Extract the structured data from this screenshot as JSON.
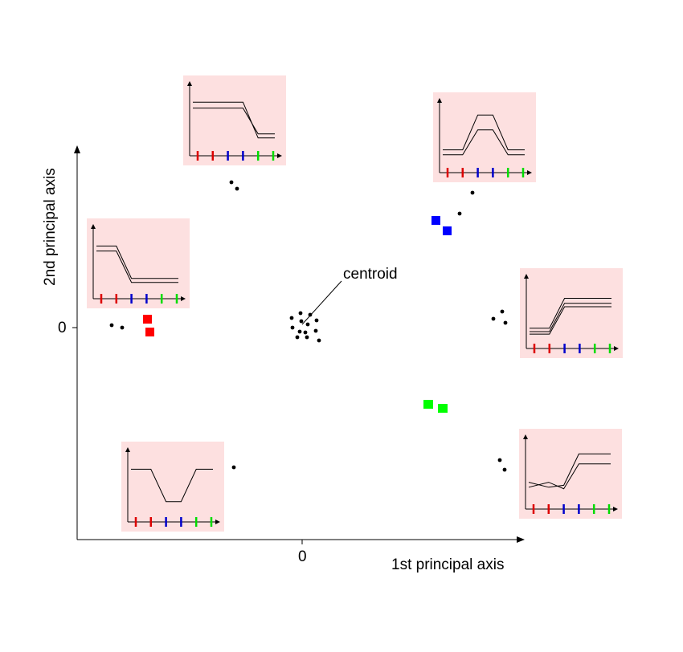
{
  "axes": {
    "x_label": "1st principal axis",
    "y_label": "2nd principal axis",
    "x_zero_label": "0",
    "y_zero_label": "0"
  },
  "annotation": {
    "centroid_label": "centroid"
  },
  "colors": {
    "inset_background": "#fde0e0",
    "tick_red": "#dd0000",
    "tick_blue": "#0000cc",
    "tick_green": "#00dd00",
    "marker_red": "#ff0000",
    "marker_blue": "#0000ff",
    "marker_green": "#00ff00",
    "points": "#000000"
  },
  "inset_tick_colors": [
    "red",
    "red",
    "blue",
    "blue",
    "green",
    "green"
  ],
  "insets": [
    {
      "name": "top-left-pattern",
      "profiles": [
        [
          0.82,
          0.82,
          0.82,
          0.82,
          0.1,
          0.1
        ],
        [
          0.7,
          0.7,
          0.7,
          0.7,
          0.18,
          0.18
        ]
      ]
    },
    {
      "name": "top-right-pattern",
      "profiles": [
        [
          0.2,
          0.2,
          0.9,
          0.9,
          0.2,
          0.2
        ],
        [
          0.1,
          0.1,
          0.6,
          0.6,
          0.1,
          0.1
        ]
      ]
    },
    {
      "name": "left-pattern",
      "profiles": [
        [
          0.8,
          0.8,
          0.15,
          0.15,
          0.15,
          0.15
        ],
        [
          0.7,
          0.7,
          0.07,
          0.07,
          0.07,
          0.07
        ]
      ]
    },
    {
      "name": "right-pattern",
      "profiles": [
        [
          0.15,
          0.15,
          0.75,
          0.75,
          0.75,
          0.75
        ],
        [
          0.08,
          0.08,
          0.65,
          0.65,
          0.65,
          0.65
        ],
        [
          0.03,
          0.03,
          0.58,
          0.58,
          0.58,
          0.58
        ]
      ]
    },
    {
      "name": "bottom-left-pattern",
      "profiles": [
        [
          0.8,
          0.8,
          0.15,
          0.15,
          0.8,
          0.8
        ]
      ]
    },
    {
      "name": "bottom-right-pattern",
      "profiles": [
        [
          0.28,
          0.18,
          0.22,
          0.85,
          0.85,
          0.85
        ],
        [
          0.18,
          0.28,
          0.15,
          0.65,
          0.65,
          0.65
        ]
      ]
    }
  ]
}
